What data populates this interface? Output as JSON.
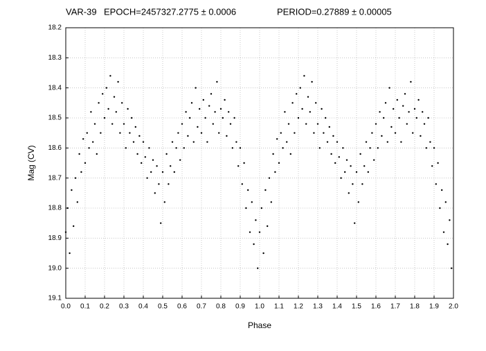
{
  "chart_data": {
    "type": "scatter",
    "title": "VAR-39",
    "epoch": "EPOCH=2457327.2775 ± 0.0006",
    "period": "PERIOD=0.27889 ± 0.00005",
    "xlabel": "Phase",
    "ylabel": "Mag (CV)",
    "color": "#000000",
    "grid": true,
    "y_reversed": true,
    "xlim": [
      0,
      2
    ],
    "ylim": [
      18.2,
      19.1
    ],
    "xticks": [
      {
        "value": 0,
        "label": "0.0"
      },
      0.1,
      0.2,
      0.3,
      0.4,
      0.5,
      0.6,
      0.7,
      0.8,
      0.9,
      {
        "value": 1,
        "label": "1.0"
      },
      1.1,
      1.2,
      1.3,
      1.4,
      1.5,
      1.6,
      1.7,
      1.8,
      1.9,
      {
        "value": 2,
        "label": "2.0"
      }
    ],
    "yticks": [
      18.2,
      18.3,
      18.4,
      18.5,
      18.6,
      18.7,
      18.8,
      18.9,
      {
        "value": 19,
        "label": "19.0"
      },
      19.1
    ],
    "x": [
      0.0,
      0.01,
      0.02,
      0.03,
      0.04,
      0.05,
      0.06,
      0.07,
      0.08,
      0.09,
      0.1,
      0.11,
      0.12,
      0.13,
      0.14,
      0.15,
      0.16,
      0.17,
      0.18,
      0.19,
      0.2,
      0.21,
      0.22,
      0.23,
      0.24,
      0.25,
      0.26,
      0.27,
      0.28,
      0.29,
      0.3,
      0.31,
      0.32,
      0.33,
      0.34,
      0.35,
      0.36,
      0.37,
      0.38,
      0.39,
      0.4,
      0.41,
      0.42,
      0.43,
      0.44,
      0.45,
      0.46,
      0.47,
      0.48,
      0.49,
      0.5,
      0.51,
      0.52,
      0.53,
      0.54,
      0.55,
      0.56,
      0.57,
      0.58,
      0.59,
      0.6,
      0.61,
      0.62,
      0.63,
      0.64,
      0.65,
      0.66,
      0.67,
      0.68,
      0.69,
      0.7,
      0.71,
      0.72,
      0.73,
      0.74,
      0.75,
      0.76,
      0.77,
      0.78,
      0.79,
      0.8,
      0.81,
      0.82,
      0.83,
      0.84,
      0.85,
      0.86,
      0.87,
      0.88,
      0.89,
      0.9,
      0.91,
      0.92,
      0.93,
      0.94,
      0.95,
      0.96,
      0.97,
      0.98,
      0.99,
      1.0,
      1.01,
      1.02,
      1.03,
      1.04,
      1.05,
      1.06,
      1.07,
      1.08,
      1.09,
      1.1,
      1.11,
      1.12,
      1.13,
      1.14,
      1.15,
      1.16,
      1.17,
      1.18,
      1.19,
      1.2,
      1.21,
      1.22,
      1.23,
      1.24,
      1.25,
      1.26,
      1.27,
      1.28,
      1.29,
      1.3,
      1.31,
      1.32,
      1.33,
      1.34,
      1.35,
      1.36,
      1.37,
      1.38,
      1.39,
      1.4,
      1.41,
      1.42,
      1.43,
      1.44,
      1.45,
      1.46,
      1.47,
      1.48,
      1.49,
      1.5,
      1.51,
      1.52,
      1.53,
      1.54,
      1.55,
      1.56,
      1.57,
      1.58,
      1.59,
      1.6,
      1.61,
      1.62,
      1.63,
      1.64,
      1.65,
      1.66,
      1.67,
      1.68,
      1.69,
      1.7,
      1.71,
      1.72,
      1.73,
      1.74,
      1.75,
      1.76,
      1.77,
      1.78,
      1.79,
      1.8,
      1.81,
      1.82,
      1.83,
      1.84,
      1.85,
      1.86,
      1.87,
      1.88,
      1.89,
      1.9,
      1.91,
      1.92,
      1.93,
      1.94,
      1.95,
      1.96,
      1.97,
      1.98,
      1.99
    ],
    "values": [
      18.88,
      18.8,
      18.95,
      18.74,
      18.86,
      18.7,
      18.78,
      18.62,
      18.68,
      18.57,
      18.65,
      18.55,
      18.6,
      18.48,
      18.58,
      18.52,
      18.62,
      18.45,
      18.55,
      18.42,
      18.5,
      18.4,
      18.47,
      18.36,
      18.52,
      18.43,
      18.48,
      18.38,
      18.55,
      18.45,
      18.52,
      18.6,
      18.47,
      18.55,
      18.5,
      18.58,
      18.53,
      18.62,
      18.56,
      18.65,
      18.58,
      18.63,
      18.7,
      18.6,
      18.68,
      18.64,
      18.75,
      18.66,
      18.72,
      18.85,
      18.68,
      18.78,
      18.62,
      18.72,
      18.66,
      18.58,
      18.68,
      18.6,
      18.55,
      18.64,
      18.52,
      18.6,
      18.48,
      18.56,
      18.5,
      18.45,
      18.58,
      18.4,
      18.53,
      18.47,
      18.55,
      18.44,
      18.5,
      18.58,
      18.46,
      18.42,
      18.52,
      18.48,
      18.38,
      18.55,
      18.47,
      18.5,
      18.44,
      18.56,
      18.48,
      18.52,
      18.6,
      18.5,
      18.58,
      18.66,
      18.6,
      18.72,
      18.65,
      18.8,
      18.74,
      18.88,
      18.78,
      18.92,
      18.84,
      19.0,
      18.88,
      18.8,
      18.95,
      18.74,
      18.86,
      18.7,
      18.78,
      18.62,
      18.68,
      18.57,
      18.65,
      18.55,
      18.6,
      18.48,
      18.58,
      18.52,
      18.62,
      18.45,
      18.55,
      18.42,
      18.5,
      18.4,
      18.47,
      18.36,
      18.52,
      18.43,
      18.48,
      18.38,
      18.55,
      18.45,
      18.52,
      18.6,
      18.47,
      18.55,
      18.5,
      18.58,
      18.53,
      18.62,
      18.56,
      18.65,
      18.58,
      18.63,
      18.7,
      18.6,
      18.68,
      18.64,
      18.75,
      18.66,
      18.72,
      18.85,
      18.68,
      18.78,
      18.62,
      18.72,
      18.66,
      18.58,
      18.68,
      18.6,
      18.55,
      18.64,
      18.52,
      18.6,
      18.48,
      18.56,
      18.5,
      18.45,
      18.58,
      18.4,
      18.53,
      18.47,
      18.55,
      18.44,
      18.5,
      18.58,
      18.46,
      18.42,
      18.52,
      18.48,
      18.38,
      18.55,
      18.47,
      18.5,
      18.44,
      18.56,
      18.48,
      18.52,
      18.6,
      18.5,
      18.58,
      18.66,
      18.6,
      18.72,
      18.65,
      18.8,
      18.74,
      18.88,
      18.78,
      18.92,
      18.84,
      19.0
    ]
  }
}
